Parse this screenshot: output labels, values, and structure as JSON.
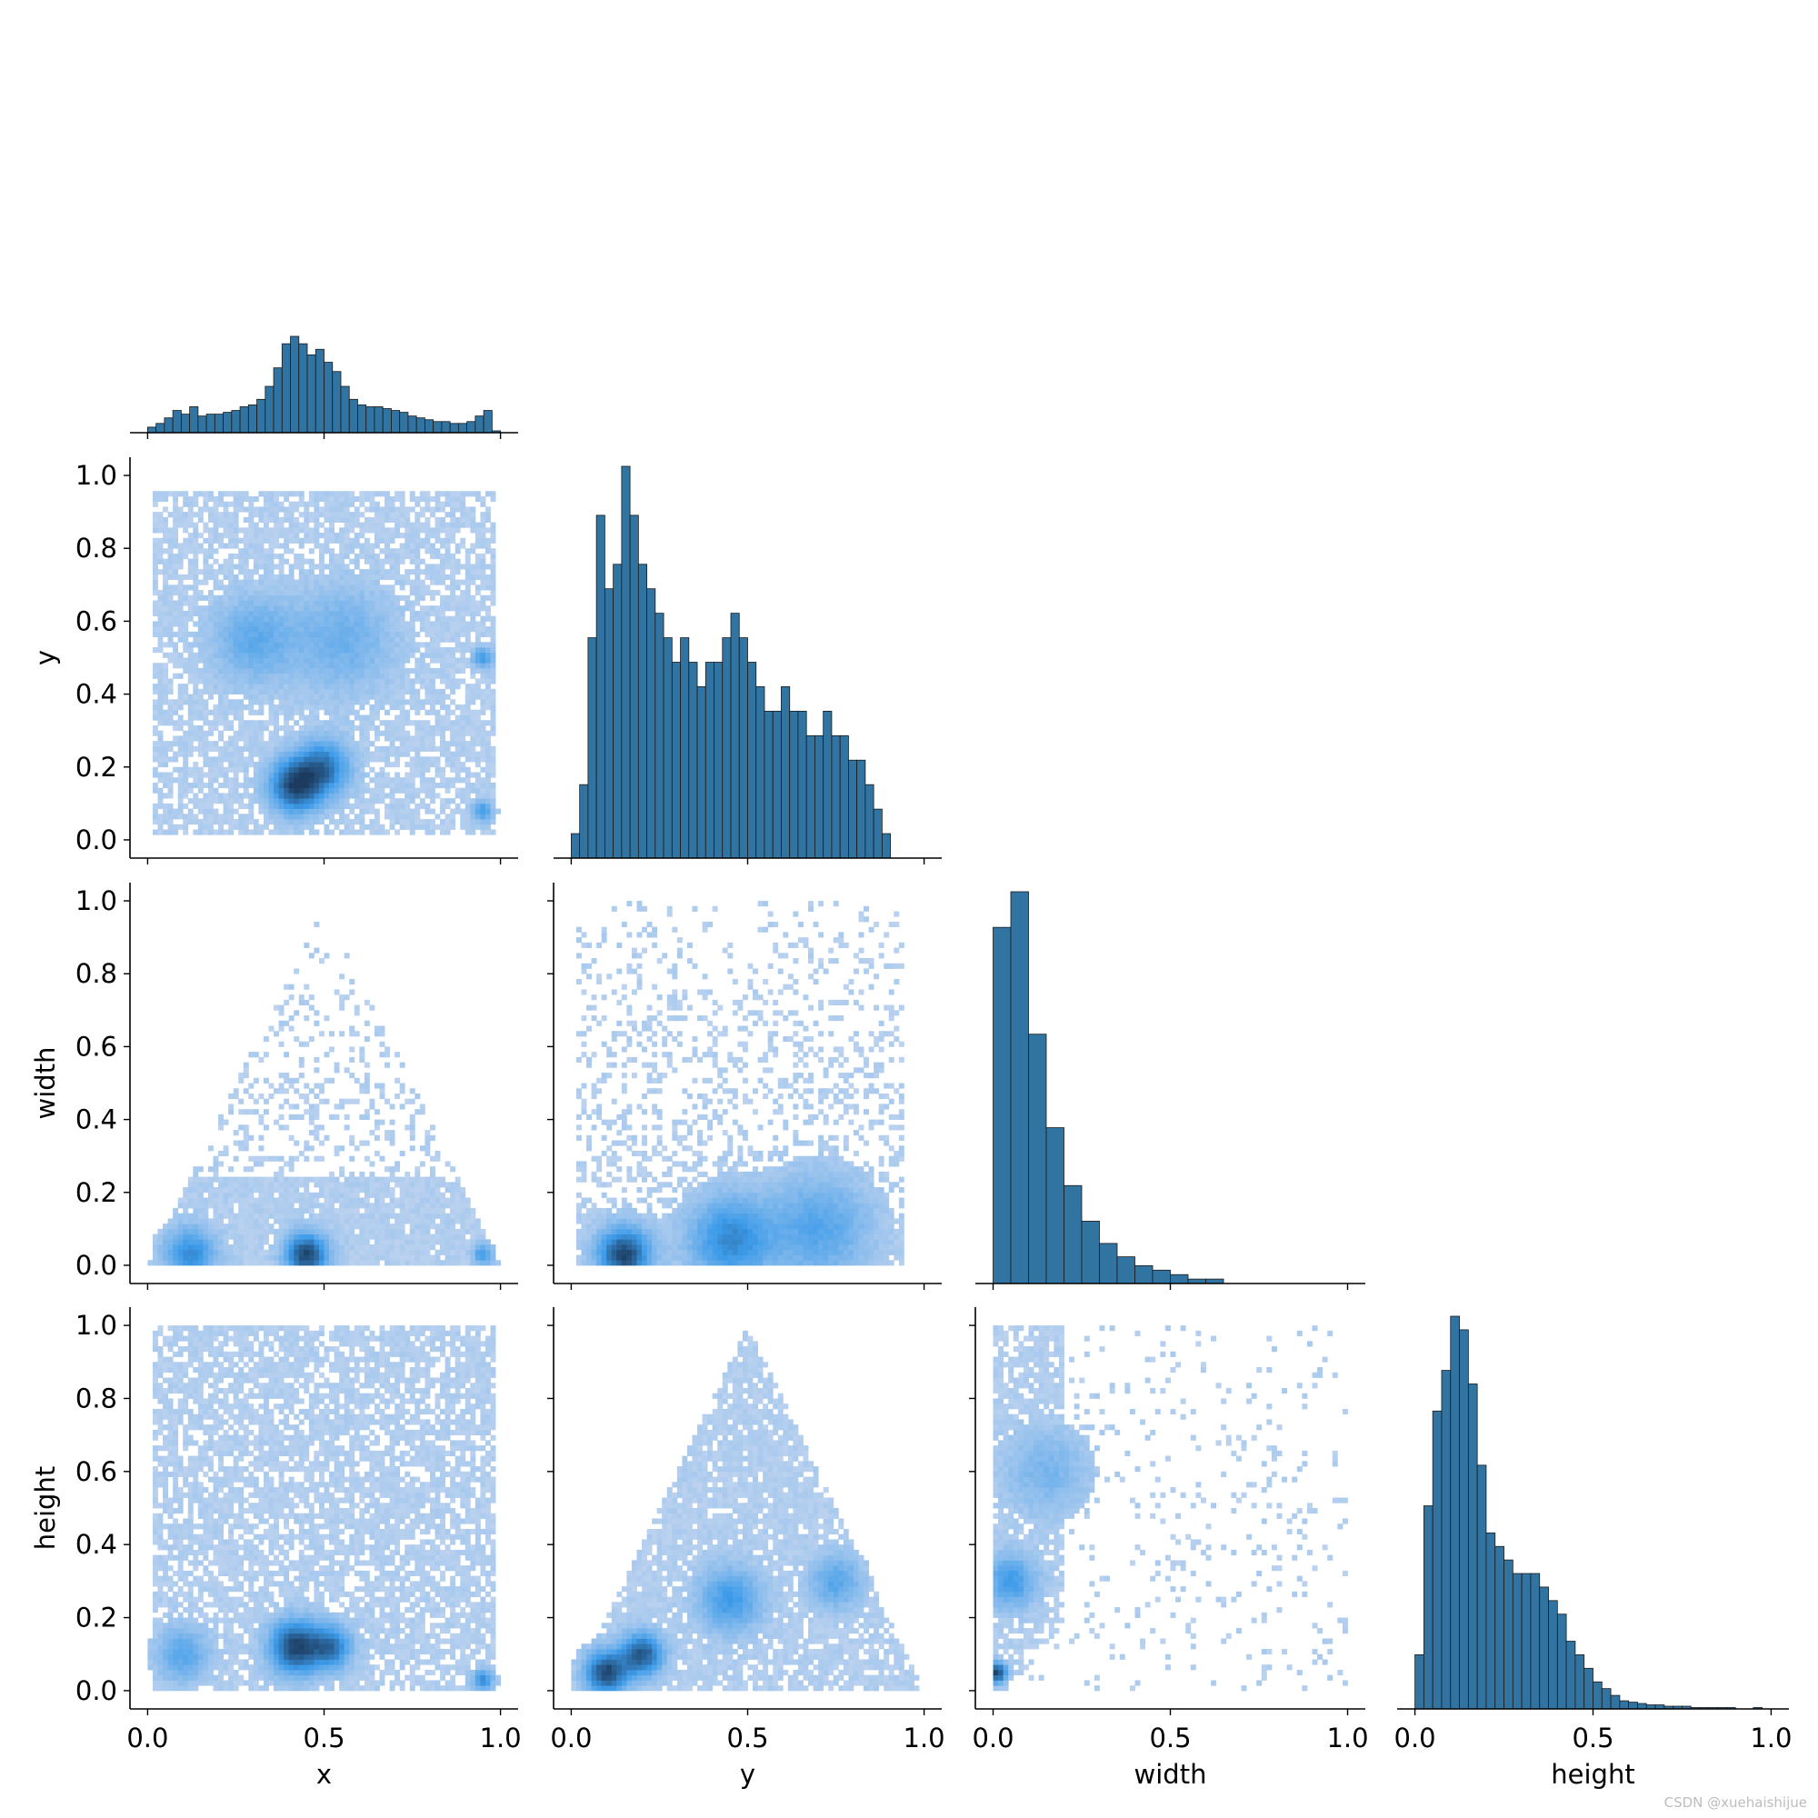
{
  "watermark": "CSDN @xuehaishijue",
  "colors": {
    "hist_fill": "#3274a1",
    "hist_edge": "#1a1a1a",
    "heat_light": "#bcd2ef",
    "heat_mid": "#3d9be9",
    "heat_dark": "#1c3b5e",
    "axis": "#000000"
  },
  "chart_data": {
    "type": "pairplot",
    "layout": "corner",
    "variables": [
      "x",
      "y",
      "width",
      "height"
    ],
    "grid": false,
    "range": [
      0.0,
      1.0
    ],
    "ticks": [
      0.0,
      0.5,
      1.0
    ],
    "tick_labels": [
      "0.0",
      "0.5",
      "1.0"
    ],
    "y_ticks": [
      0.0,
      0.2,
      0.4,
      0.6,
      0.8,
      1.0
    ],
    "y_tick_labels": [
      "0.0",
      "0.2",
      "0.4",
      "0.6",
      "0.8",
      "1.0"
    ],
    "diagonal": [
      {
        "variable": "x",
        "type": "histogram",
        "bin_edges_range": [
          0.0,
          1.0
        ],
        "counts": [
          3,
          5,
          8,
          12,
          10,
          14,
          9,
          10,
          10,
          11,
          12,
          14,
          15,
          18,
          25,
          35,
          48,
          52,
          48,
          42,
          45,
          38,
          33,
          25,
          18,
          15,
          14,
          14,
          13,
          12,
          11,
          9,
          8,
          7,
          6,
          6,
          5,
          5,
          6,
          9,
          12,
          1
        ]
      },
      {
        "variable": "y",
        "type": "histogram",
        "bin_edges_range": [
          0.0,
          1.0
        ],
        "counts": [
          1,
          3,
          9,
          14,
          11,
          12,
          16,
          14,
          12,
          11,
          10,
          9,
          8,
          9,
          8,
          7,
          8,
          8,
          9,
          10,
          9,
          8,
          7,
          6,
          6,
          7,
          6,
          6,
          5,
          5,
          6,
          5,
          5,
          4,
          4,
          3,
          2,
          1,
          0,
          0,
          0,
          0
        ]
      },
      {
        "variable": "width",
        "type": "histogram",
        "bin_edges_range": [
          0.0,
          1.0
        ],
        "counts": [
          80,
          88,
          56,
          35,
          22,
          14,
          9,
          6,
          4,
          3,
          2,
          1,
          1,
          0,
          0,
          0,
          0,
          0,
          0,
          0
        ]
      },
      {
        "variable": "height",
        "type": "histogram",
        "bin_edges_range": [
          0.0,
          1.0
        ],
        "counts": [
          4,
          15,
          22,
          25,
          29,
          28,
          24,
          18,
          13,
          12,
          11,
          10,
          10,
          10,
          9,
          8,
          7,
          5,
          4,
          3,
          2,
          1.5,
          1,
          0.6,
          0.5,
          0.4,
          0.3,
          0.3,
          0.2,
          0.2,
          0.2,
          0.1,
          0.1,
          0.1,
          0.1,
          0.1,
          0,
          0,
          0.1,
          0
        ]
      }
    ],
    "off_diagonal": [
      {
        "x": "x",
        "y": "y",
        "type": "heatmap",
        "density_hotspots": [
          {
            "x": 0.42,
            "y": 0.15,
            "weight": 1.0,
            "spread": 0.05
          },
          {
            "x": 0.5,
            "y": 0.2,
            "weight": 0.7,
            "spread": 0.05
          },
          {
            "x": 0.3,
            "y": 0.55,
            "weight": 0.35,
            "spread": 0.08
          },
          {
            "x": 0.55,
            "y": 0.55,
            "weight": 0.3,
            "spread": 0.1
          },
          {
            "x": 0.95,
            "y": 0.5,
            "weight": 0.5,
            "spread": 0.02
          },
          {
            "x": 0.95,
            "y": 0.08,
            "weight": 0.5,
            "spread": 0.02
          }
        ],
        "extent": {
          "x": [
            0.0,
            1.0
          ],
          "y": [
            0.02,
            0.96
          ]
        }
      },
      {
        "x": "x",
        "y": "width",
        "type": "heatmap",
        "density_hotspots": [
          {
            "x": 0.45,
            "y": 0.03,
            "weight": 1.0,
            "spread": 0.04
          },
          {
            "x": 0.12,
            "y": 0.03,
            "weight": 0.6,
            "spread": 0.05
          },
          {
            "x": 0.95,
            "y": 0.03,
            "weight": 0.5,
            "spread": 0.02
          }
        ],
        "extent": {
          "x": [
            0.0,
            1.0
          ],
          "y": [
            0.0,
            1.0
          ]
        },
        "shape": "triangle"
      },
      {
        "x": "x",
        "y": "height",
        "type": "heatmap",
        "density_hotspots": [
          {
            "x": 0.42,
            "y": 0.12,
            "weight": 1.0,
            "spread": 0.05
          },
          {
            "x": 0.52,
            "y": 0.12,
            "weight": 0.7,
            "spread": 0.04
          },
          {
            "x": 0.95,
            "y": 0.03,
            "weight": 0.6,
            "spread": 0.02
          },
          {
            "x": 0.1,
            "y": 0.1,
            "weight": 0.4,
            "spread": 0.05
          }
        ],
        "extent": {
          "x": [
            0.0,
            1.0
          ],
          "y": [
            0.0,
            1.0
          ]
        }
      },
      {
        "x": "y",
        "y": "width",
        "type": "heatmap",
        "density_hotspots": [
          {
            "x": 0.15,
            "y": 0.03,
            "weight": 1.0,
            "spread": 0.05
          },
          {
            "x": 0.45,
            "y": 0.07,
            "weight": 0.6,
            "spread": 0.08
          },
          {
            "x": 0.7,
            "y": 0.1,
            "weight": 0.4,
            "spread": 0.1
          }
        ],
        "extent": {
          "x": [
            0.0,
            1.0
          ],
          "y": [
            0.0,
            1.0
          ]
        }
      },
      {
        "x": "y",
        "y": "height",
        "type": "heatmap",
        "density_hotspots": [
          {
            "x": 0.1,
            "y": 0.05,
            "weight": 1.0,
            "spread": 0.04
          },
          {
            "x": 0.2,
            "y": 0.1,
            "weight": 0.9,
            "spread": 0.04
          },
          {
            "x": 0.45,
            "y": 0.25,
            "weight": 0.5,
            "spread": 0.06
          },
          {
            "x": 0.75,
            "y": 0.3,
            "weight": 0.4,
            "spread": 0.05
          }
        ],
        "extent": {
          "x": [
            0.0,
            1.0
          ],
          "y": [
            0.0,
            1.0
          ]
        },
        "shape": "triangle"
      },
      {
        "x": "width",
        "y": "height",
        "type": "heatmap",
        "density_hotspots": [
          {
            "x": 0.01,
            "y": 0.05,
            "weight": 1.0,
            "spread": 0.02
          },
          {
            "x": 0.05,
            "y": 0.3,
            "weight": 0.5,
            "spread": 0.05
          },
          {
            "x": 0.15,
            "y": 0.6,
            "weight": 0.25,
            "spread": 0.08
          }
        ],
        "extent": {
          "x": [
            0.0,
            1.0
          ],
          "y": [
            0.0,
            1.0
          ]
        }
      }
    ]
  }
}
